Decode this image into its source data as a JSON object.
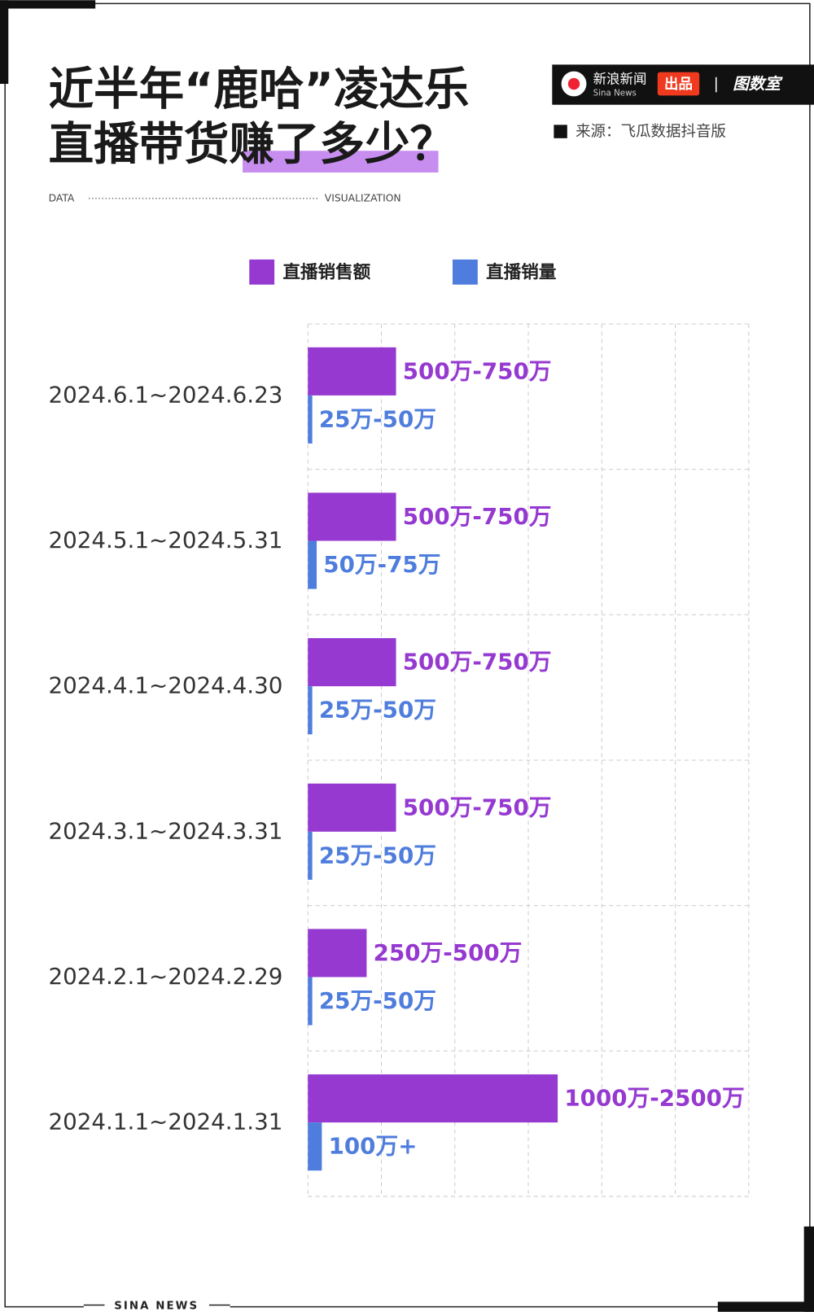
{
  "header": {
    "title_lines": [
      "近半年“鹿哈”凌达乐",
      "直播带货",
      "赚了多少",
      "？"
    ],
    "tag_left": "DATA",
    "tag_right": "VISUALIZATION",
    "logo": {
      "brand": "新浪新闻",
      "brand_en": "Sina News",
      "produced": "出品",
      "studio": "图数室"
    },
    "source": "来源：飞瓜数据抖音版"
  },
  "chart_data": {
    "type": "hbar",
    "categories": [
      "2024.6.1~2024.6.23",
      "2024.5.1~2024.5.31",
      "2024.4.1~2024.4.30",
      "2024.3.1~2024.3.31",
      "2024.2.1~2024.2.29",
      "2024.1.1~2024.1.31"
    ],
    "series": [
      {
        "name": "直播销售额",
        "color": "#9539d0",
        "values": [
          1.2,
          1.2,
          1.2,
          1.2,
          0.8,
          3.4
        ],
        "value_labels": [
          "500万-750万",
          "500万-750万",
          "500万-750万",
          "500万-750万",
          "250万-500万",
          "1000万-2500万"
        ]
      },
      {
        "name": "直播销量",
        "color": "#4f7ddd",
        "values": [
          0.06,
          0.12,
          0.06,
          0.06,
          0.06,
          0.19
        ],
        "value_labels": [
          "25万-50万",
          "50万-75万",
          "25万-50万",
          "25万-50万",
          "25万-50万",
          "100万+"
        ]
      }
    ],
    "xlim": [
      0,
      6
    ],
    "xticks": [
      0,
      1,
      2,
      3,
      4,
      5,
      6
    ],
    "grid": true
  },
  "footer": "SINA NEWS"
}
